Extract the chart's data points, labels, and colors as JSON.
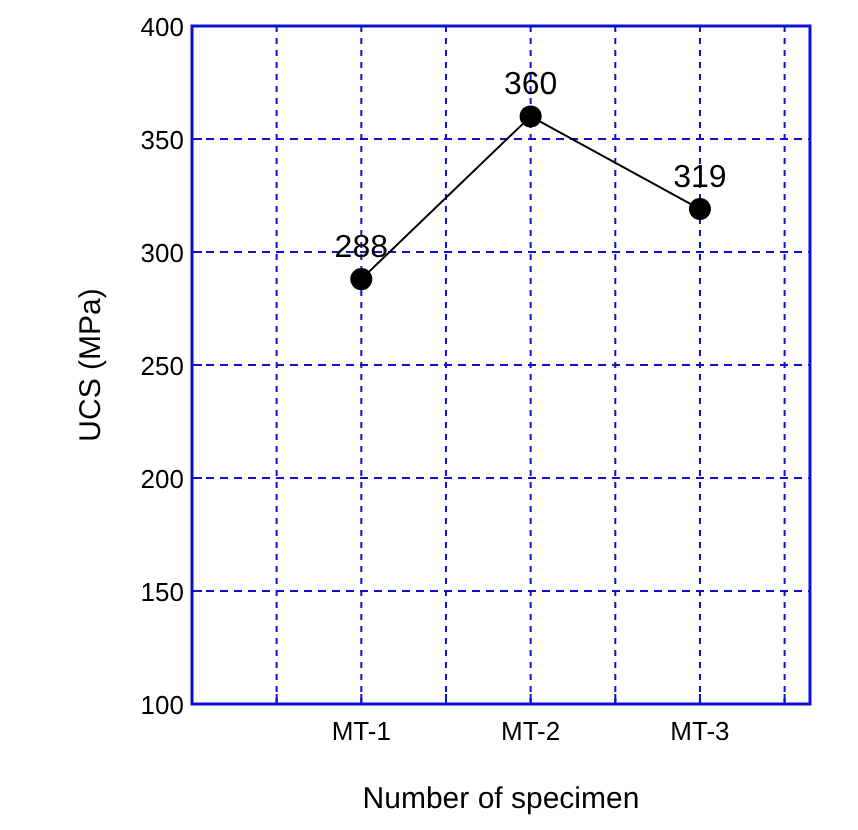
{
  "chart_data": {
    "type": "line",
    "xlabel": "Number of specimen",
    "ylabel": "UCS (MPa)",
    "categories": [
      "MT-1",
      "MT-2",
      "MT-3"
    ],
    "series": [
      {
        "color": "#000000",
        "values": [
          288,
          360,
          319
        ]
      }
    ],
    "ylim": [
      100,
      400
    ],
    "yticks": [
      100,
      150,
      200,
      250,
      300,
      350,
      400
    ],
    "grid": true,
    "marker": "circle",
    "line_style": "solid",
    "data_labels": true
  }
}
